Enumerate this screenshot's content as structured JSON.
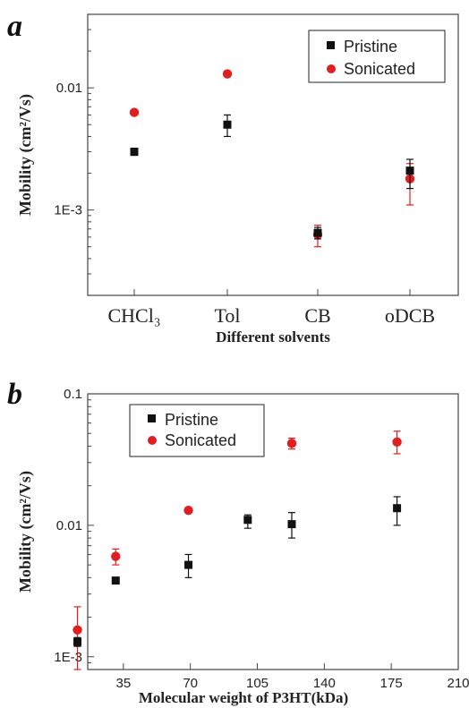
{
  "chart_data": [
    {
      "panel": "a",
      "type": "scatter",
      "xlabel": "Different solvents",
      "ylabel": "Mobility (cm²/Vs)",
      "yscale": "log",
      "ylim": [
        0.0002,
        0.04
      ],
      "yticks": [
        0.001,
        0.01
      ],
      "ytick_labels": [
        "1E-3",
        "0.01"
      ],
      "categories": [
        "CHCl₃",
        "Tol",
        "CB",
        "oDCB"
      ],
      "legend": {
        "placement": "top-right",
        "entries": [
          "Pristine",
          "Sonicated"
        ]
      },
      "series": [
        {
          "name": "Pristine",
          "color": "#111111",
          "marker": "square",
          "values": [
            0.003,
            0.005,
            0.00065,
            0.0021
          ],
          "err_low": [
            0.0028,
            0.004,
            0.00058,
            0.0015
          ],
          "err_high": [
            0.0032,
            0.006,
            0.00072,
            0.0026
          ]
        },
        {
          "name": "Sonicated",
          "color": "#e02020",
          "marker": "circle",
          "values": [
            0.0063,
            0.013,
            0.00063,
            0.0018
          ],
          "err_low": [
            0.0063,
            0.013,
            0.0005,
            0.0011
          ],
          "err_high": [
            0.0063,
            0.013,
            0.00075,
            0.0024
          ]
        }
      ]
    },
    {
      "panel": "b",
      "type": "scatter",
      "xlabel": "Molecular weight of P3HT(kDa)",
      "ylabel": "Mobility (cm²/Vs)",
      "yscale": "log",
      "ylim": [
        0.0008,
        0.1
      ],
      "yticks": [
        0.001,
        0.01,
        0.1
      ],
      "ytick_labels": [
        "1E-3",
        "0.01",
        "0.1"
      ],
      "xlim": [
        0,
        210
      ],
      "xticks": [
        35,
        70,
        105,
        140,
        175,
        210
      ],
      "xtick_labels": [
        "35",
        "70",
        "105",
        "140",
        "175",
        "210"
      ],
      "legend": {
        "placement": "top-left",
        "entries": [
          "Pristine",
          "Sonicated"
        ]
      },
      "series": [
        {
          "name": "Pristine",
          "color": "#111111",
          "marker": "square",
          "x": [
            11,
            31,
            69,
            100,
            123,
            178
          ],
          "values": [
            0.0013,
            0.0038,
            0.005,
            0.011,
            0.0102,
            0.0135
          ],
          "err_low": [
            0.0012,
            0.0037,
            0.004,
            0.0095,
            0.008,
            0.01
          ],
          "err_high": [
            0.0014,
            0.0039,
            0.006,
            0.012,
            0.0125,
            0.0165
          ]
        },
        {
          "name": "Sonicated",
          "color": "#e02020",
          "marker": "circle",
          "x": [
            11,
            31,
            69,
            100,
            123,
            178
          ],
          "values": [
            0.0016,
            0.0058,
            0.013,
            0.047,
            0.042,
            0.043
          ],
          "err_low": [
            0.0008,
            0.005,
            0.013,
            0.038,
            0.038,
            0.035
          ],
          "err_high": [
            0.0024,
            0.0066,
            0.013,
            0.059,
            0.046,
            0.052
          ]
        }
      ]
    }
  ]
}
